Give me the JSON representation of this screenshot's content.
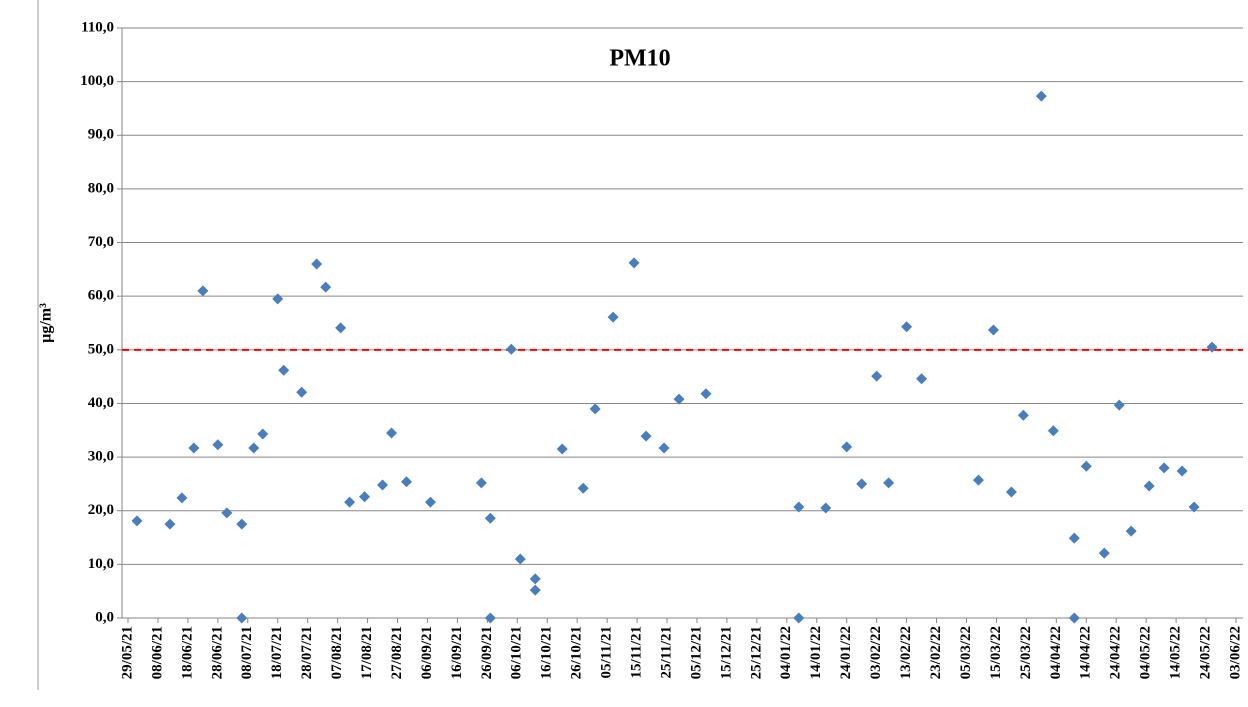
{
  "chart_data": {
    "type": "scatter",
    "title": "PM10",
    "y_label": "µg/m³",
    "color": "#4a7ebb",
    "x": [
      "01/06/21",
      "12/06/21",
      "16/06/21",
      "20/06/21",
      "23/06/21",
      "28/06/21",
      "01/07/21",
      "06/07/21",
      "06/07/21",
      "10/07/21",
      "13/07/21",
      "18/07/21",
      "20/07/21",
      "26/07/21",
      "31/07/21",
      "03/08/21",
      "08/08/21",
      "11/08/21",
      "16/08/21",
      "22/08/21",
      "25/08/21",
      "30/08/21",
      "07/09/21",
      "24/09/21",
      "27/09/21",
      "27/09/21",
      "04/10/21",
      "07/10/21",
      "12/10/21",
      "12/10/21",
      "21/10/21",
      "28/10/21",
      "01/11/21",
      "07/11/21",
      "14/11/21",
      "18/11/21",
      "24/11/21",
      "29/11/21",
      "08/12/21",
      "08/01/22",
      "08/01/22",
      "17/01/22",
      "24/01/22",
      "29/01/22",
      "03/02/22",
      "07/02/22",
      "13/02/22",
      "18/02/22",
      "09/03/22",
      "14/03/22",
      "20/03/22",
      "24/03/22",
      "30/03/22",
      "03/04/22",
      "10/04/22",
      "10/04/22",
      "14/04/22",
      "20/04/22",
      "25/04/22",
      "29/04/22",
      "05/05/22",
      "10/05/22",
      "16/05/22",
      "20/05/22",
      "26/05/22"
    ],
    "values": [
      18.1,
      17.5,
      22.4,
      31.7,
      61.0,
      32.3,
      19.6,
      17.5,
      0,
      31.7,
      34.3,
      59.5,
      46.2,
      42.1,
      66.0,
      61.7,
      54.1,
      21.6,
      22.6,
      24.8,
      34.5,
      25.4,
      21.6,
      25.2,
      18.6,
      0,
      50.1,
      11.0,
      7.3,
      5.2,
      31.5,
      24.2,
      39.0,
      56.1,
      66.2,
      33.9,
      31.7,
      40.8,
      41.8,
      20.7,
      0,
      20.5,
      31.9,
      25.0,
      45.1,
      25.2,
      54.3,
      44.6,
      25.7,
      53.7,
      23.5,
      37.8,
      97.3,
      34.9,
      14.9,
      0,
      28.3,
      12.1,
      39.7,
      16.2,
      24.6,
      28.0,
      27.4,
      20.7,
      50.5
    ],
    "limit_line": 50,
    "limit_color": "#ff0000",
    "xlim": [
      "29/05/21",
      "03/06/22"
    ],
    "xticks": [
      "29/05/21",
      "08/06/21",
      "18/06/21",
      "28/06/21",
      "08/07/21",
      "18/07/21",
      "28/07/21",
      "07/08/21",
      "17/08/21",
      "27/08/21",
      "06/09/21",
      "16/09/21",
      "26/09/21",
      "06/10/21",
      "16/10/21",
      "26/10/21",
      "05/11/21",
      "15/11/21",
      "25/11/21",
      "05/12/21",
      "15/12/21",
      "25/12/21",
      "04/01/22",
      "14/01/22",
      "24/01/22",
      "03/02/22",
      "13/02/22",
      "23/02/22",
      "05/03/22",
      "15/03/22",
      "25/03/22",
      "04/04/22",
      "14/04/22",
      "24/04/22",
      "04/05/22",
      "14/05/22",
      "24/05/22",
      "03/06/22"
    ],
    "ylim": [
      0,
      110
    ],
    "yticks": [
      {
        "value": 0,
        "label": "0,0"
      },
      {
        "value": 10,
        "label": "10,0"
      },
      {
        "value": 20,
        "label": "20,0"
      },
      {
        "value": 30,
        "label": "30,0"
      },
      {
        "value": 40,
        "label": "40,0"
      },
      {
        "value": 50,
        "label": "50,0"
      },
      {
        "value": 60,
        "label": "60,0"
      },
      {
        "value": 70,
        "label": "70,0"
      },
      {
        "value": 80,
        "label": "80,0"
      },
      {
        "value": 90,
        "label": "90,0"
      },
      {
        "value": 100,
        "label": "100,0"
      },
      {
        "value": 110,
        "label": "110,0"
      }
    ],
    "grid": true
  }
}
